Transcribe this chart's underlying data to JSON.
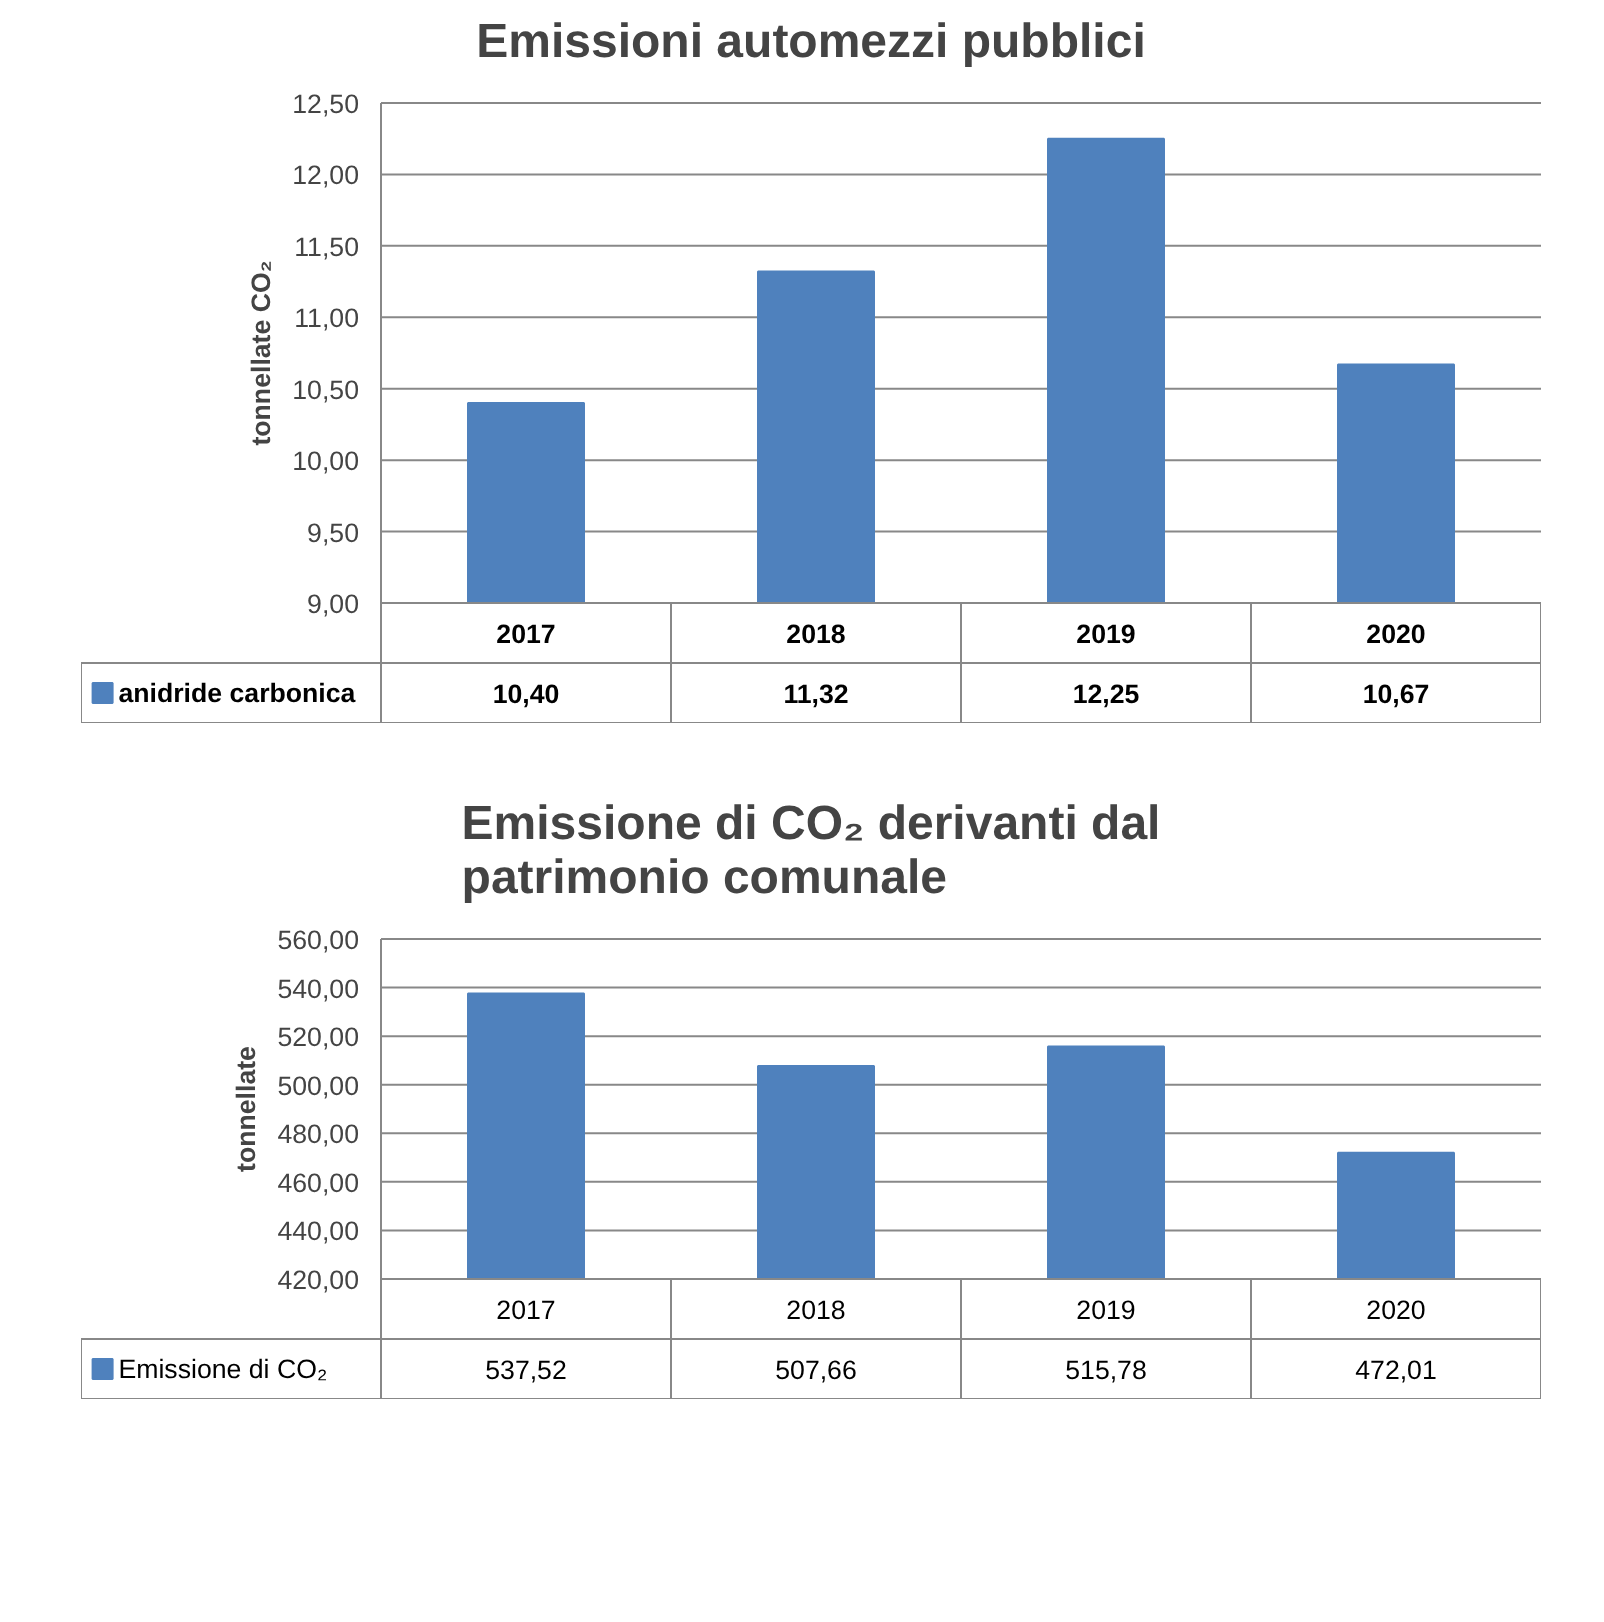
{
  "chart_data": [
    {
      "type": "bar",
      "title": "Emissioni automezzi pubblici",
      "ylabel": "tonnellate CO₂",
      "categories": [
        "2017",
        "2018",
        "2019",
        "2020"
      ],
      "series": [
        {
          "name": "anidride carbonica",
          "color": "#4f81bd",
          "values": [
            10.4,
            11.32,
            12.25,
            10.67
          ],
          "value_labels": [
            "10,40",
            "11,32",
            "12,25",
            "10,67"
          ]
        }
      ],
      "ylim": [
        9,
        12.5
      ],
      "yticks": [
        {
          "value": 9,
          "label": "9,00"
        },
        {
          "value": 9.5,
          "label": "9,50"
        },
        {
          "value": 10,
          "label": "10,00"
        },
        {
          "value": 10.5,
          "label": "10,50"
        },
        {
          "value": 11,
          "label": "11,00"
        },
        {
          "value": 11.5,
          "label": "11,50"
        },
        {
          "value": 12,
          "label": "12,00"
        },
        {
          "value": 12.5,
          "label": "12,50"
        }
      ],
      "grid": "y",
      "legend": "bottom"
    },
    {
      "type": "bar",
      "title": "Emissione di CO₂ derivanti dal patrimonio comunale",
      "ylabel": "tonnellate",
      "categories": [
        "2017",
        "2018",
        "2019",
        "2020"
      ],
      "series": [
        {
          "name": "Emissione di CO₂",
          "color": "#4f81bd",
          "values": [
            537.52,
            507.66,
            515.78,
            472.01
          ],
          "value_labels": [
            "537,52",
            "507,66",
            "515,78",
            "472,01"
          ]
        }
      ],
      "ylim": [
        420,
        560
      ],
      "yticks": [
        {
          "value": 420,
          "label": "420,00"
        },
        {
          "value": 440,
          "label": "440,00"
        },
        {
          "value": 460,
          "label": "460,00"
        },
        {
          "value": 480,
          "label": "480,00"
        },
        {
          "value": 500,
          "label": "500,00"
        },
        {
          "value": 520,
          "label": "520,00"
        },
        {
          "value": 540,
          "label": "540,00"
        },
        {
          "value": 560,
          "label": "560,00"
        }
      ],
      "grid": "y",
      "legend": "bottom"
    }
  ]
}
